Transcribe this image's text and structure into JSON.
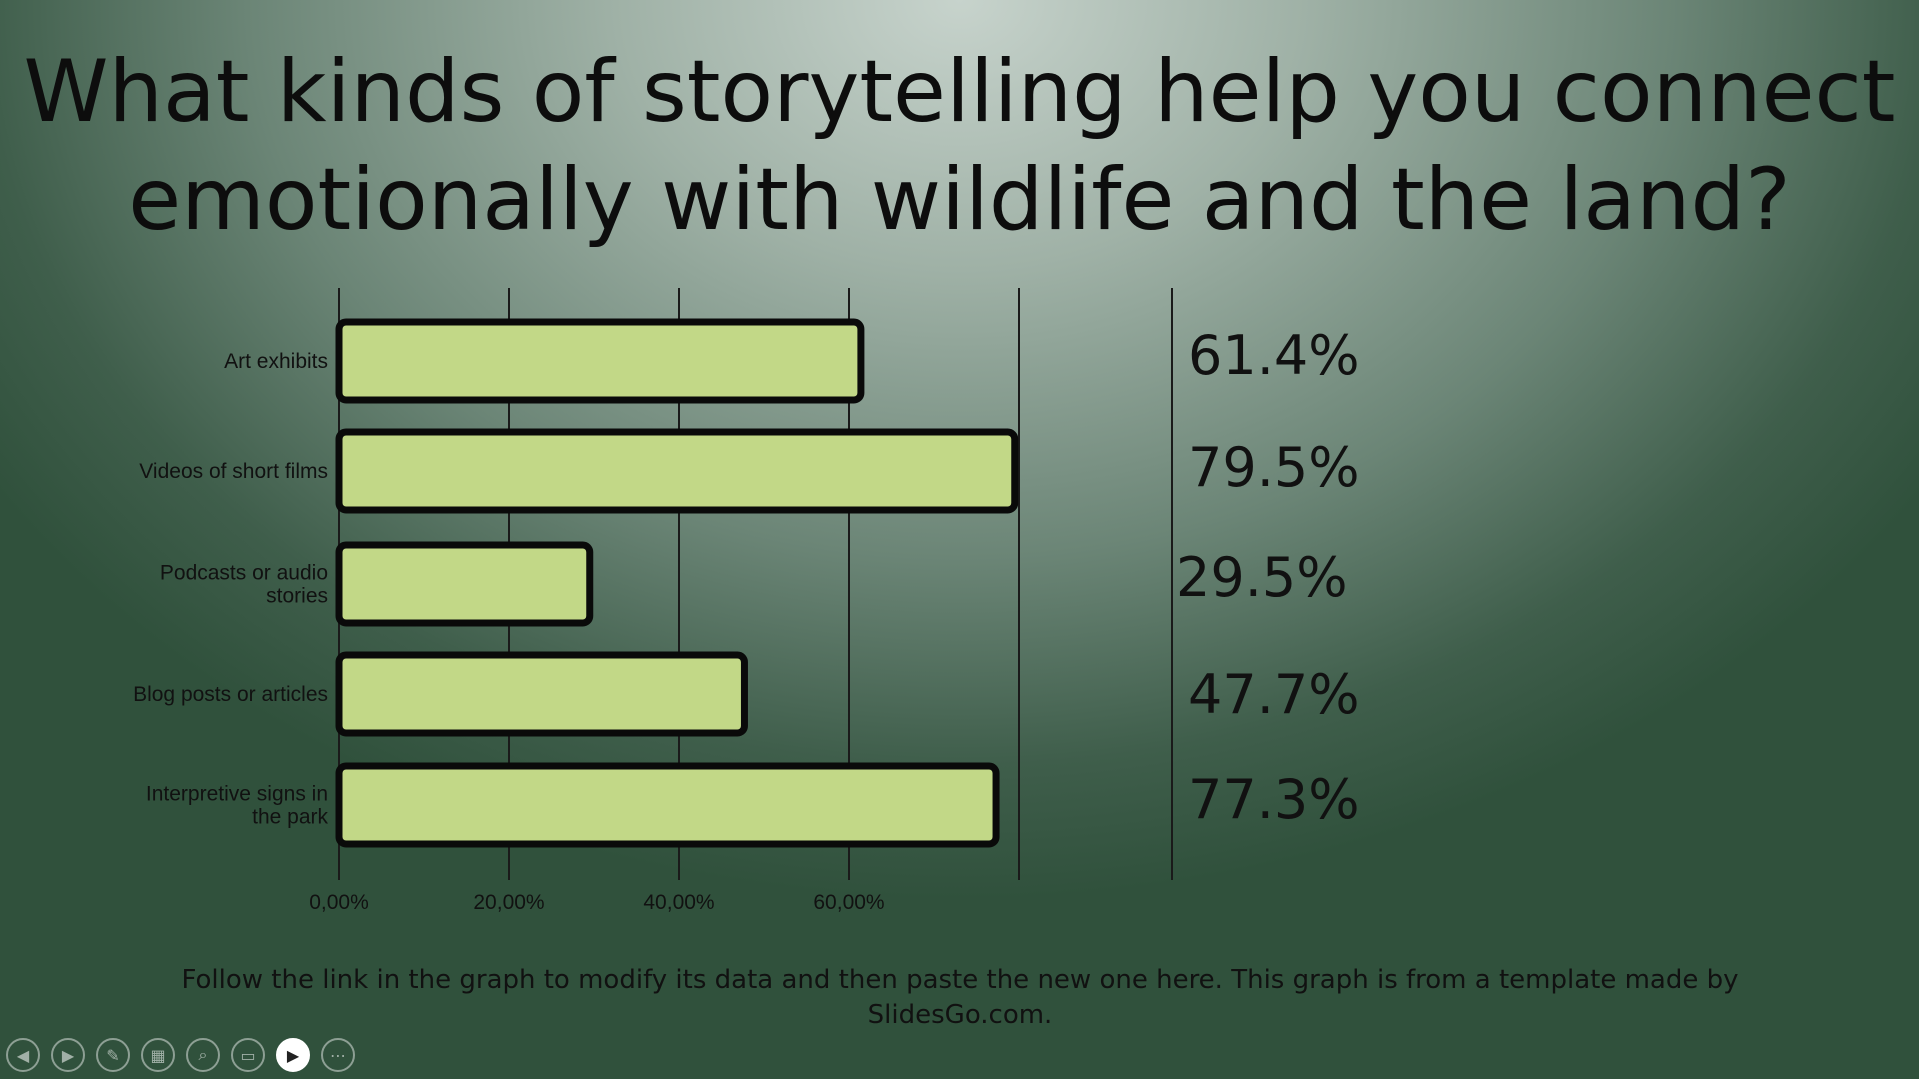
{
  "slide": {
    "title_lines": [
      "What kinds of storytelling help you connect",
      "emotionally with wildlife and the land?"
    ],
    "footnote_lines": [
      "Follow the link in the graph to modify its data and then paste the new one here. This graph is from a template made by",
      "SlidesGo.com."
    ]
  },
  "chart_data": {
    "type": "bar",
    "orientation": "horizontal",
    "categories": [
      [
        "Art exhibits"
      ],
      [
        "Videos of short films"
      ],
      [
        "Podcasts or audio",
        "stories"
      ],
      [
        "Blog posts or articles"
      ],
      [
        "Interpretive signs in",
        "the park"
      ]
    ],
    "values": [
      61.4,
      79.5,
      29.5,
      47.7,
      77.3
    ],
    "value_labels": [
      "61.4%",
      "79.5%",
      "29.5%",
      "47.7%",
      "77.3%"
    ],
    "x_ticks": [
      0,
      20,
      40,
      60
    ],
    "x_tick_labels": [
      "0,00%",
      "20,00%",
      "40,00%",
      "60,00%"
    ],
    "xlim": [
      0,
      80
    ],
    "grid": true,
    "bar_color": "#c2d887",
    "bar_outline_color": "#0a0a0a"
  },
  "toolbar": {
    "buttons": [
      {
        "icon": "previous-arrow-icon",
        "glyph": "◀",
        "active": false
      },
      {
        "icon": "next-arrow-icon",
        "glyph": "▶",
        "active": false
      },
      {
        "icon": "pen-icon",
        "glyph": "✎",
        "active": false
      },
      {
        "icon": "slides-grid-icon",
        "glyph": "▦",
        "active": false
      },
      {
        "icon": "zoom-icon",
        "glyph": "⌕",
        "active": false
      },
      {
        "icon": "subtitles-icon",
        "glyph": "▭",
        "active": false
      },
      {
        "icon": "camera-icon",
        "glyph": "▶",
        "active": true
      },
      {
        "icon": "more-options-icon",
        "glyph": "⋯",
        "active": false
      }
    ]
  }
}
